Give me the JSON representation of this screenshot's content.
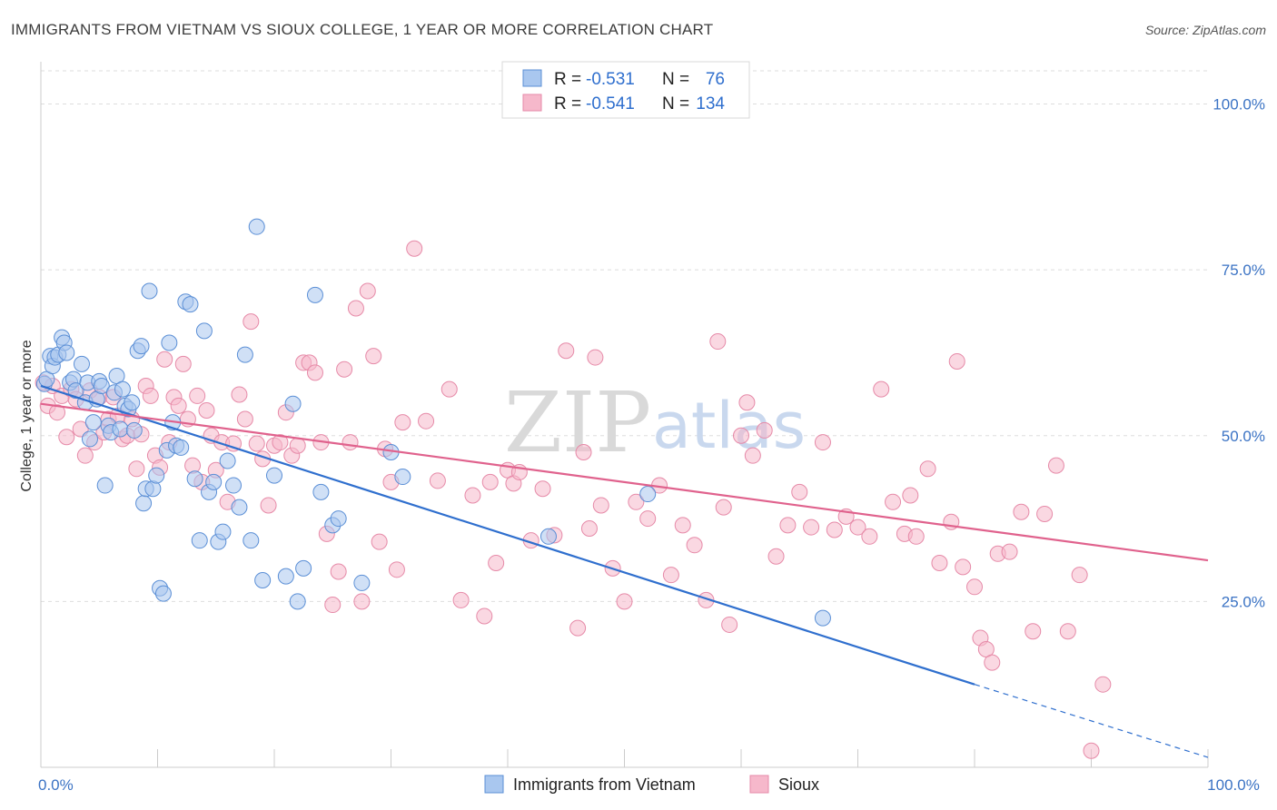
{
  "title": "IMMIGRANTS FROM VIETNAM VS SIOUX COLLEGE, 1 YEAR OR MORE CORRELATION CHART",
  "source": "Source: ZipAtlas.com",
  "watermark": {
    "zip": "ZIP",
    "atlas": "atlas"
  },
  "colors": {
    "blue_fill": "#a9c7ef",
    "blue_stroke": "#5b8fd6",
    "blue_line": "#2f6fce",
    "pink_fill": "#f6b8cb",
    "pink_stroke": "#e68aa8",
    "pink_line": "#e0628d",
    "grid": "#dddddd",
    "axis_text": "#3b73c4"
  },
  "legend": {
    "rows": [
      {
        "r_label": "R =",
        "r_value": "-0.531",
        "n_label": "N =",
        "n_value": "76"
      },
      {
        "r_label": "R =",
        "r_value": "-0.541",
        "n_label": "N =",
        "n_value": "134"
      }
    ]
  },
  "bottom_legend": [
    "Immigrants from Vietnam",
    "Sioux"
  ],
  "chart_data": {
    "type": "scatter",
    "title": "IMMIGRANTS FROM VIETNAM VS SIOUX COLLEGE, 1 YEAR OR MORE CORRELATION CHART",
    "xlabel": "",
    "ylabel": "College, 1 year or more",
    "xlim": [
      0,
      100
    ],
    "ylim": [
      0,
      105
    ],
    "x_tick_labels": [
      {
        "value": 0,
        "label": "0.0%"
      },
      {
        "value": 100,
        "label": "100.0%"
      }
    ],
    "y_tick_labels": [
      {
        "value": 25,
        "label": "25.0%"
      },
      {
        "value": 50,
        "label": "50.0%"
      },
      {
        "value": 75,
        "label": "75.0%"
      },
      {
        "value": 100,
        "label": "100.0%"
      }
    ],
    "grid": true,
    "legend_position": "top-center",
    "series": [
      {
        "name": "Immigrants from Vietnam",
        "color": "#a9c7ef",
        "stats": {
          "R": -0.531,
          "N": 76
        },
        "trend": {
          "x0": 0,
          "y0": 57.5,
          "x1": 80,
          "y1": 12.5,
          "dashed_to": {
            "x": 100,
            "y": 1.5
          }
        },
        "points": [
          [
            0.3,
            57.8
          ],
          [
            0.5,
            58.5
          ],
          [
            0.8,
            62.0
          ],
          [
            1.0,
            60.5
          ],
          [
            1.2,
            61.8
          ],
          [
            1.5,
            62.2
          ],
          [
            1.8,
            64.8
          ],
          [
            2.0,
            64.0
          ],
          [
            2.2,
            62.5
          ],
          [
            2.5,
            58.0
          ],
          [
            2.8,
            58.5
          ],
          [
            3.0,
            56.8
          ],
          [
            3.5,
            60.8
          ],
          [
            3.8,
            55.0
          ],
          [
            4.0,
            58.0
          ],
          [
            4.2,
            49.5
          ],
          [
            4.5,
            52.0
          ],
          [
            4.8,
            55.5
          ],
          [
            5.0,
            58.2
          ],
          [
            5.2,
            57.5
          ],
          [
            5.5,
            42.5
          ],
          [
            5.8,
            51.5
          ],
          [
            6.0,
            50.5
          ],
          [
            6.3,
            56.5
          ],
          [
            6.5,
            59.0
          ],
          [
            6.8,
            51.0
          ],
          [
            7.0,
            57.0
          ],
          [
            7.2,
            54.5
          ],
          [
            7.5,
            54.0
          ],
          [
            7.8,
            55.0
          ],
          [
            8.0,
            50.8
          ],
          [
            8.3,
            62.8
          ],
          [
            8.6,
            63.5
          ],
          [
            8.8,
            39.8
          ],
          [
            9.0,
            42.0
          ],
          [
            9.3,
            71.8
          ],
          [
            9.6,
            42.0
          ],
          [
            9.9,
            44.0
          ],
          [
            10.2,
            27.0
          ],
          [
            10.5,
            26.2
          ],
          [
            10.8,
            47.8
          ],
          [
            11.0,
            64.0
          ],
          [
            11.3,
            52.0
          ],
          [
            11.6,
            48.5
          ],
          [
            12.0,
            48.2
          ],
          [
            12.4,
            70.2
          ],
          [
            12.8,
            69.8
          ],
          [
            13.2,
            43.5
          ],
          [
            13.6,
            34.2
          ],
          [
            14.0,
            65.8
          ],
          [
            14.4,
            41.5
          ],
          [
            14.8,
            43.0
          ],
          [
            15.2,
            34.0
          ],
          [
            15.6,
            35.5
          ],
          [
            16.0,
            46.2
          ],
          [
            16.5,
            42.5
          ],
          [
            17.0,
            39.2
          ],
          [
            17.5,
            62.2
          ],
          [
            18.0,
            34.2
          ],
          [
            18.5,
            81.5
          ],
          [
            19.0,
            28.2
          ],
          [
            20.0,
            44.0
          ],
          [
            21.0,
            28.8
          ],
          [
            21.6,
            54.8
          ],
          [
            22.0,
            25.0
          ],
          [
            22.5,
            30.0
          ],
          [
            23.5,
            71.2
          ],
          [
            24.0,
            41.5
          ],
          [
            25.0,
            36.5
          ],
          [
            25.5,
            37.5
          ],
          [
            27.5,
            27.8
          ],
          [
            30.0,
            47.5
          ],
          [
            31.0,
            43.8
          ],
          [
            43.5,
            34.8
          ],
          [
            52.0,
            41.2
          ],
          [
            67.0,
            22.5
          ]
        ]
      },
      {
        "name": "Sioux",
        "color": "#f6b8cb",
        "stats": {
          "R": -0.541,
          "N": 134
        },
        "trend": {
          "x0": 0,
          "y0": 54.8,
          "x1": 100,
          "y1": 31.2
        },
        "points": [
          [
            0.2,
            58.0
          ],
          [
            0.6,
            54.5
          ],
          [
            1.0,
            57.5
          ],
          [
            1.4,
            53.5
          ],
          [
            1.8,
            56.0
          ],
          [
            2.2,
            49.8
          ],
          [
            2.6,
            57.0
          ],
          [
            3.0,
            55.5
          ],
          [
            3.4,
            51.0
          ],
          [
            3.8,
            47.0
          ],
          [
            4.2,
            56.8
          ],
          [
            4.6,
            49.0
          ],
          [
            5.0,
            55.8
          ],
          [
            5.4,
            50.5
          ],
          [
            5.8,
            52.5
          ],
          [
            6.2,
            55.8
          ],
          [
            6.6,
            53.0
          ],
          [
            7.0,
            49.5
          ],
          [
            7.4,
            50.0
          ],
          [
            7.8,
            52.5
          ],
          [
            8.2,
            45.0
          ],
          [
            8.6,
            50.2
          ],
          [
            9.0,
            57.5
          ],
          [
            9.4,
            56.0
          ],
          [
            9.8,
            47.0
          ],
          [
            10.2,
            45.2
          ],
          [
            10.6,
            61.5
          ],
          [
            11.0,
            49.0
          ],
          [
            11.4,
            55.8
          ],
          [
            11.8,
            54.5
          ],
          [
            12.2,
            60.8
          ],
          [
            12.6,
            52.5
          ],
          [
            13.0,
            45.5
          ],
          [
            13.4,
            56.0
          ],
          [
            13.8,
            43.0
          ],
          [
            14.2,
            53.8
          ],
          [
            14.6,
            50.0
          ],
          [
            15.0,
            44.8
          ],
          [
            15.5,
            49.0
          ],
          [
            16.0,
            40.0
          ],
          [
            16.5,
            48.8
          ],
          [
            17.0,
            56.2
          ],
          [
            17.5,
            52.5
          ],
          [
            18.0,
            67.2
          ],
          [
            18.5,
            48.8
          ],
          [
            19.0,
            46.5
          ],
          [
            19.5,
            39.5
          ],
          [
            20.0,
            48.5
          ],
          [
            20.5,
            49.0
          ],
          [
            21.0,
            53.5
          ],
          [
            21.5,
            47.0
          ],
          [
            22.0,
            48.5
          ],
          [
            22.5,
            61.0
          ],
          [
            23.0,
            61.0
          ],
          [
            23.5,
            59.5
          ],
          [
            24.0,
            49.0
          ],
          [
            24.5,
            35.2
          ],
          [
            25.0,
            24.5
          ],
          [
            25.5,
            29.5
          ],
          [
            26.0,
            60.0
          ],
          [
            26.5,
            49.0
          ],
          [
            27.0,
            69.2
          ],
          [
            27.5,
            25.0
          ],
          [
            28.0,
            71.8
          ],
          [
            28.5,
            62.0
          ],
          [
            29.0,
            34.0
          ],
          [
            29.5,
            48.0
          ],
          [
            30.0,
            43.0
          ],
          [
            30.5,
            29.8
          ],
          [
            31.0,
            52.0
          ],
          [
            32.0,
            78.2
          ],
          [
            33.0,
            52.2
          ],
          [
            34.0,
            43.2
          ],
          [
            35.0,
            57.0
          ],
          [
            36.0,
            25.2
          ],
          [
            37.0,
            41.0
          ],
          [
            38.0,
            22.8
          ],
          [
            38.5,
            43.0
          ],
          [
            39.0,
            30.8
          ],
          [
            40.0,
            44.8
          ],
          [
            40.5,
            42.8
          ],
          [
            41.0,
            44.5
          ],
          [
            42.0,
            34.2
          ],
          [
            43.0,
            42.0
          ],
          [
            44.0,
            35.0
          ],
          [
            45.0,
            62.8
          ],
          [
            46.0,
            21.0
          ],
          [
            46.5,
            47.5
          ],
          [
            47.0,
            36.0
          ],
          [
            47.5,
            61.8
          ],
          [
            48.0,
            39.5
          ],
          [
            49.0,
            30.0
          ],
          [
            50.0,
            25.0
          ],
          [
            51.0,
            40.0
          ],
          [
            52.0,
            37.5
          ],
          [
            53.0,
            42.5
          ],
          [
            54.0,
            29.0
          ],
          [
            55.0,
            36.5
          ],
          [
            56.0,
            33.5
          ],
          [
            57.0,
            25.2
          ],
          [
            58.0,
            64.2
          ],
          [
            58.5,
            39.2
          ],
          [
            59.0,
            21.5
          ],
          [
            60.0,
            50.0
          ],
          [
            60.5,
            55.0
          ],
          [
            61.0,
            47.0
          ],
          [
            62.0,
            50.8
          ],
          [
            63.0,
            31.8
          ],
          [
            64.0,
            36.5
          ],
          [
            65.0,
            41.5
          ],
          [
            66.0,
            36.2
          ],
          [
            67.0,
            49.0
          ],
          [
            68.0,
            35.8
          ],
          [
            69.0,
            37.8
          ],
          [
            70.0,
            36.2
          ],
          [
            71.0,
            34.8
          ],
          [
            72.0,
            57.0
          ],
          [
            73.0,
            40.0
          ],
          [
            74.0,
            35.2
          ],
          [
            74.5,
            41.0
          ],
          [
            75.0,
            34.8
          ],
          [
            76.0,
            45.0
          ],
          [
            77.0,
            30.8
          ],
          [
            78.0,
            37.0
          ],
          [
            78.5,
            61.2
          ],
          [
            79.0,
            30.2
          ],
          [
            80.0,
            27.2
          ],
          [
            80.5,
            19.5
          ],
          [
            81.0,
            17.8
          ],
          [
            81.5,
            15.8
          ],
          [
            82.0,
            32.2
          ],
          [
            83.0,
            32.5
          ],
          [
            84.0,
            38.5
          ],
          [
            85.0,
            20.5
          ],
          [
            86.0,
            38.2
          ],
          [
            87.0,
            45.5
          ],
          [
            88.0,
            20.5
          ],
          [
            89.0,
            29.0
          ],
          [
            90.0,
            2.5
          ],
          [
            91.0,
            12.5
          ]
        ]
      }
    ]
  }
}
